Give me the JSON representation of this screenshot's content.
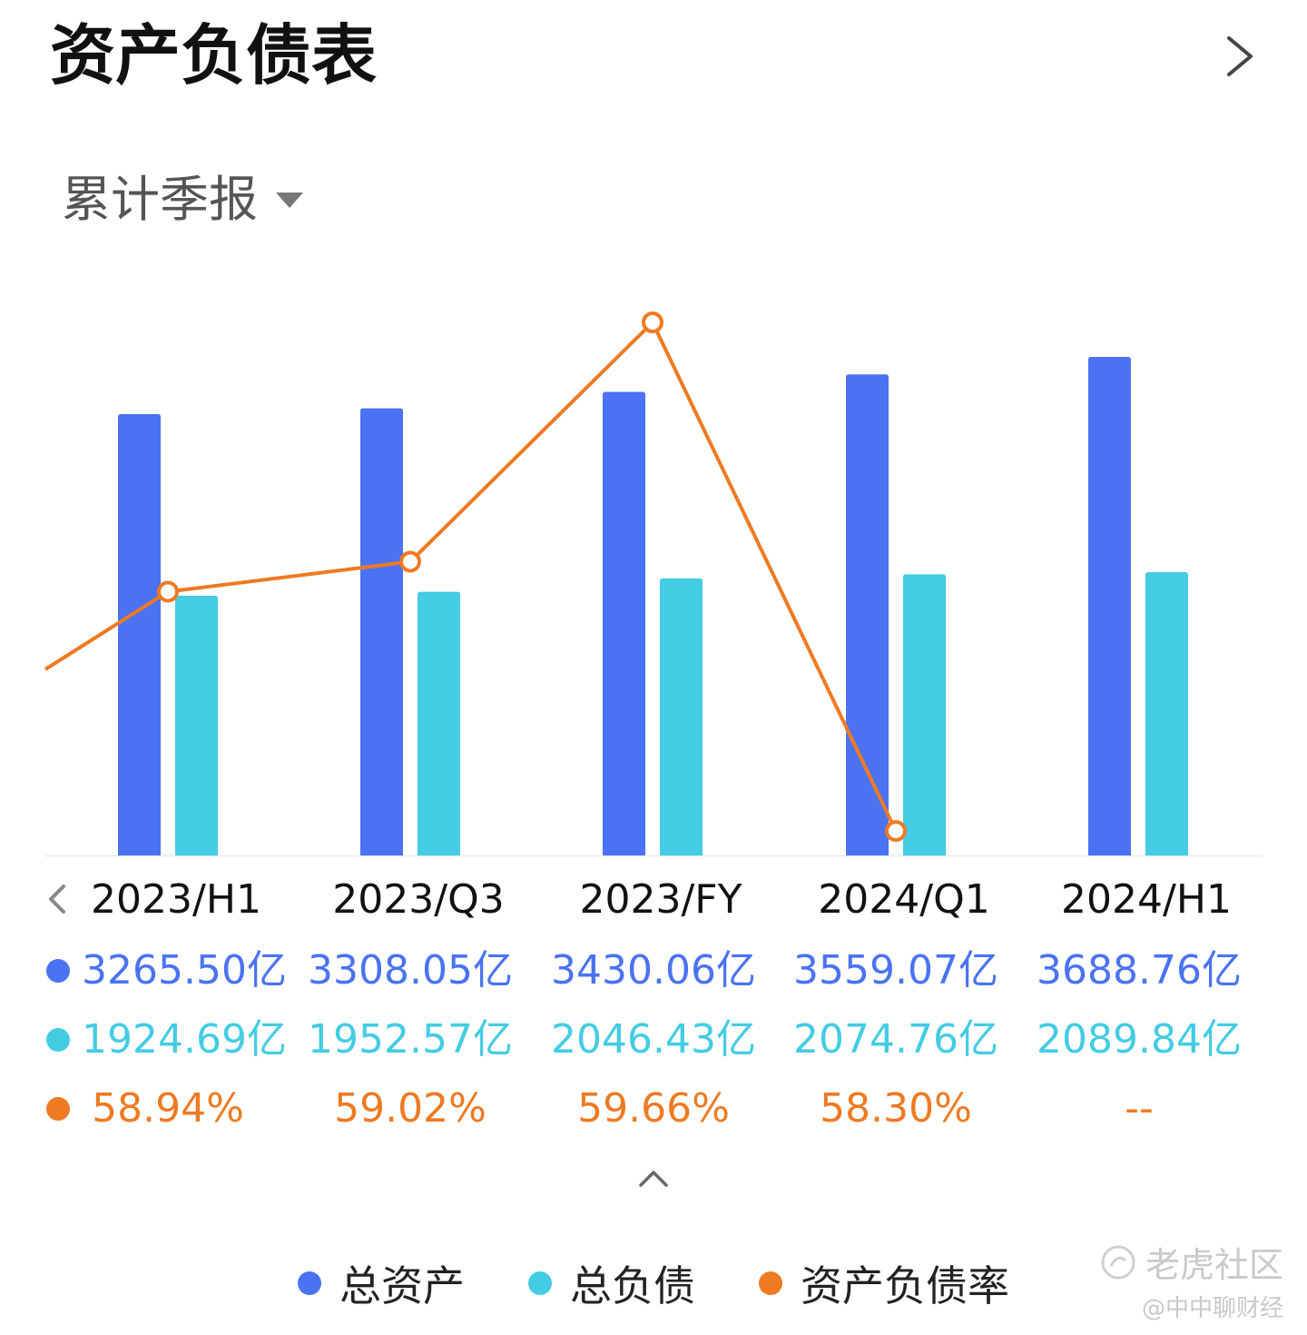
{
  "header": {
    "title": "资产负债表"
  },
  "period_selector": {
    "label": "累计季报"
  },
  "colors": {
    "assets": "#4A72F2",
    "liabilities": "#43CCE3",
    "ratio": "#EE7A22"
  },
  "chart_data": {
    "type": "bar",
    "categories": [
      "2023/H1",
      "2023/Q3",
      "2023/FY",
      "2024/Q1",
      "2024/H1"
    ],
    "series": [
      {
        "name": "总资产",
        "type": "bar",
        "values": [
          3265.5,
          3308.05,
          3430.06,
          3559.07,
          3688.76
        ],
        "labels": [
          "3265.50亿",
          "3308.05亿",
          "3430.06亿",
          "3559.07亿",
          "3688.76亿"
        ]
      },
      {
        "name": "总负债",
        "type": "bar",
        "values": [
          1924.69,
          1952.57,
          2046.43,
          2074.76,
          2089.84
        ],
        "labels": [
          "1924.69亿",
          "1952.57亿",
          "2046.43亿",
          "2074.76亿",
          "2089.84亿"
        ]
      },
      {
        "name": "资产负债率",
        "type": "line",
        "values": [
          58.94,
          59.02,
          59.66,
          58.3,
          null
        ],
        "labels": [
          "58.94%",
          "59.02%",
          "59.66%",
          "58.30%",
          "--"
        ]
      }
    ],
    "legend_position": "bottom",
    "grid": false
  },
  "watermark": {
    "brand": "老虎社区",
    "author": "@中中聊财经"
  }
}
